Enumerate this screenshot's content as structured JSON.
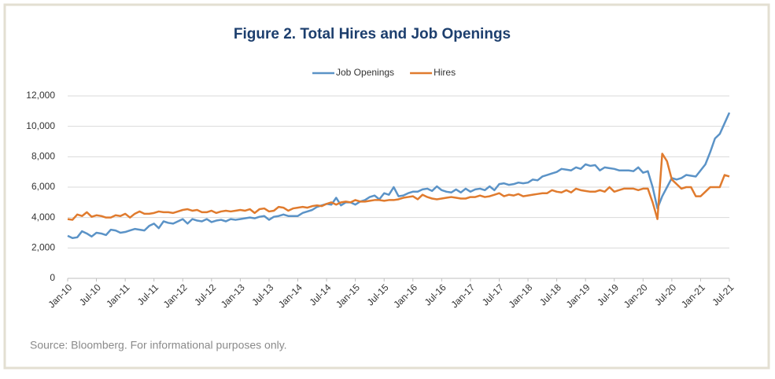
{
  "chart_data": {
    "type": "line",
    "title": "Figure 2. Total Hires and Job Openings",
    "source": "Source: Bloomberg. For informational purposes only.",
    "categories": [
      "Jan-10",
      null,
      null,
      null,
      null,
      null,
      "Jul-10",
      null,
      null,
      null,
      null,
      null,
      "Jan-11",
      null,
      null,
      null,
      null,
      null,
      "Jul-11",
      null,
      null,
      null,
      null,
      null,
      "Jan-12",
      null,
      null,
      null,
      null,
      null,
      "Jul-12",
      null,
      null,
      null,
      null,
      null,
      "Jan-13",
      null,
      null,
      null,
      null,
      null,
      "Jul-13",
      null,
      null,
      null,
      null,
      null,
      "Jan-14",
      null,
      null,
      null,
      null,
      null,
      "Jul-14",
      null,
      null,
      null,
      null,
      null,
      "Jan-15",
      null,
      null,
      null,
      null,
      null,
      "Jul-15",
      null,
      null,
      null,
      null,
      null,
      "Jan-16",
      null,
      null,
      null,
      null,
      null,
      "Jul-16",
      null,
      null,
      null,
      null,
      null,
      "Jan-17",
      null,
      null,
      null,
      null,
      null,
      "Jul-17",
      null,
      null,
      null,
      null,
      null,
      "Jan-18",
      null,
      null,
      null,
      null,
      null,
      "Jul-18",
      null,
      null,
      null,
      null,
      null,
      "Jan-19",
      null,
      null,
      null,
      null,
      null,
      "Jul-19",
      null,
      null,
      null,
      null,
      null,
      "Jan-20",
      null,
      null,
      null,
      null,
      null,
      "Jul-20",
      null,
      null,
      null,
      null,
      null,
      "Jan-21",
      null,
      null,
      null,
      null,
      null,
      "Jul-21"
    ],
    "series": [
      {
        "name": "Job Openings",
        "color": "#5b93c7",
        "values": [
          2800,
          2650,
          2700,
          3100,
          2950,
          2750,
          3000,
          2950,
          2850,
          3200,
          3150,
          3000,
          3050,
          3150,
          3250,
          3200,
          3150,
          3450,
          3600,
          3300,
          3750,
          3650,
          3600,
          3750,
          3900,
          3600,
          3900,
          3800,
          3750,
          3900,
          3700,
          3800,
          3850,
          3750,
          3900,
          3850,
          3900,
          3950,
          4000,
          3950,
          4050,
          4100,
          3850,
          4050,
          4100,
          4200,
          4100,
          4100,
          4100,
          4300,
          4400,
          4500,
          4700,
          4800,
          4900,
          4850,
          5300,
          4800,
          5000,
          5000,
          4850,
          5050,
          5150,
          5350,
          5450,
          5200,
          5600,
          5500,
          6000,
          5400,
          5450,
          5600,
          5700,
          5700,
          5850,
          5900,
          5750,
          6050,
          5800,
          5700,
          5650,
          5850,
          5650,
          5900,
          5700,
          5850,
          5900,
          5800,
          6050,
          5800,
          6200,
          6250,
          6150,
          6200,
          6300,
          6250,
          6300,
          6500,
          6450,
          6700,
          6800,
          6900,
          7000,
          7200,
          7150,
          7100,
          7300,
          7200,
          7500,
          7400,
          7450,
          7100,
          7300,
          7250,
          7200,
          7100,
          7100,
          7100,
          7050,
          7300,
          6950,
          7050,
          6000,
          4600,
          5400,
          6000,
          6600,
          6500,
          6600,
          6800,
          6750,
          6700,
          7100,
          7500,
          8300,
          9200,
          9500,
          10200,
          10900
        ]
      },
      {
        "name": "Hires",
        "color": "#e07b2e",
        "values": [
          3900,
          3850,
          4200,
          4100,
          4350,
          4050,
          4150,
          4100,
          4000,
          4000,
          4150,
          4100,
          4250,
          4000,
          4250,
          4400,
          4250,
          4250,
          4300,
          4400,
          4350,
          4350,
          4300,
          4400,
          4500,
          4550,
          4450,
          4500,
          4350,
          4350,
          4450,
          4300,
          4400,
          4450,
          4400,
          4450,
          4500,
          4450,
          4550,
          4300,
          4550,
          4600,
          4400,
          4450,
          4700,
          4650,
          4450,
          4600,
          4650,
          4700,
          4650,
          4750,
          4800,
          4750,
          4900,
          5000,
          4850,
          5000,
          5050,
          5000,
          5150,
          5050,
          5050,
          5100,
          5150,
          5150,
          5100,
          5150,
          5150,
          5200,
          5300,
          5350,
          5400,
          5200,
          5500,
          5350,
          5250,
          5200,
          5250,
          5300,
          5350,
          5300,
          5250,
          5250,
          5350,
          5350,
          5450,
          5350,
          5400,
          5500,
          5600,
          5400,
          5500,
          5450,
          5550,
          5400,
          5450,
          5500,
          5550,
          5600,
          5600,
          5800,
          5700,
          5650,
          5800,
          5650,
          5900,
          5800,
          5750,
          5700,
          5700,
          5800,
          5700,
          6000,
          5700,
          5800,
          5900,
          5900,
          5900,
          5800,
          5900,
          5900,
          5000,
          3900,
          8200,
          7700,
          6500,
          6200,
          5900,
          6000,
          6000,
          5400,
          5400,
          5700,
          6000,
          6000,
          6000,
          6800,
          6700
        ]
      }
    ],
    "ylim": [
      0,
      12000
    ],
    "yticks": [
      0,
      {
        "value": 2000,
        "label": "2,000"
      },
      {
        "value": 4000,
        "label": "4,000"
      },
      {
        "value": 6000,
        "label": "6,000"
      },
      {
        "value": 8000,
        "label": "8,000"
      },
      {
        "value": 10000,
        "label": "10,000"
      },
      {
        "value": 12000,
        "label": "12,000"
      }
    ],
    "grid": true,
    "legend": "top"
  }
}
